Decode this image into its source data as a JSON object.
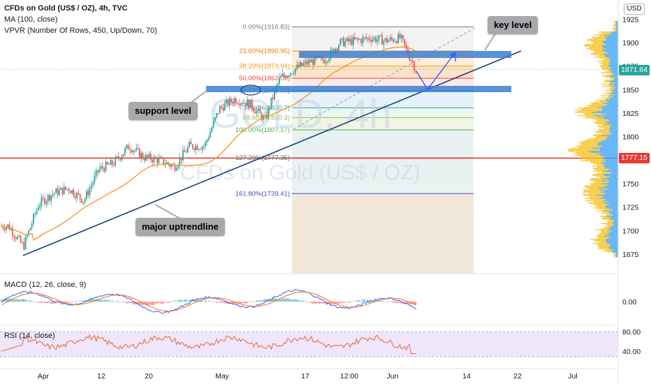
{
  "legend": {
    "title": "CFDs on Gold (US$ / OZ), 4h, TVC",
    "ma": "MA (100, close)",
    "vpvr": "VPVR (Number Of Rows, 450, Up/Down, 70)"
  },
  "currency": "USD",
  "watermark": {
    "symbol": "GOLD, 4h",
    "name": "CFDs on Gold (US$ / OZ)"
  },
  "annotations": {
    "key_level": "key level",
    "support_level": "support level",
    "major_uptrendline": "major uptrendline"
  },
  "price_tags": {
    "current": "1871.64",
    "red_line": "1777.15"
  },
  "macd_label": "MACD (12, 26, close, 9)",
  "rsi_label": "RSI (14, close)",
  "colors": {
    "up_candle": "#26a69a",
    "down_candle": "#ef5350",
    "ma_line": "#f7931a",
    "trendline": "#1a3f7a",
    "highlight_bar": "#3d7fd0",
    "red_level": "#e53935",
    "vp_up": "#f7c325",
    "vp_down": "#42a5f5",
    "macd_line": "#2962ff",
    "signal_line": "#ff6d00",
    "rsi_line": "#e8662b",
    "rsi_band": "#e9defa"
  },
  "chart_data": {
    "type": "candlestick",
    "title": "CFDs on Gold (US$ / OZ), 4h, TVC",
    "y_axis": {
      "ticks": [
        1675,
        1700,
        1725,
        1750,
        1775,
        1800,
        1825,
        1850,
        1875,
        1900,
        1925
      ],
      "range": [
        1662,
        1932
      ]
    },
    "x_axis": {
      "ticks": [
        "Apr",
        "12",
        "20",
        "May",
        "17",
        "12:00",
        "Jun",
        "14",
        "22",
        "Jul"
      ]
    },
    "current_price": 1871.64,
    "horizontal_levels": [
      1777.15
    ],
    "fibonacci": [
      {
        "label": "0.00%(1916.83)",
        "level": 0.0,
        "price": 1916.83
      },
      {
        "label": "23.60%(1890.95)",
        "level": 23.6,
        "price": 1890.95
      },
      {
        "label": "38.20%(1874.94)",
        "level": 38.2,
        "price": 1874.94
      },
      {
        "label": "50.00%(1862.00)",
        "level": 50.0,
        "price": 1862.0
      },
      {
        "label": "61.80%(1849.06)",
        "level": 61.8,
        "price": 1849.06
      },
      {
        "label": "78.60%(1830.7)",
        "level": 78.6,
        "price": 1830.7
      },
      {
        "label": "88.60%(1820.3)",
        "level": 88.6,
        "price": 1820.3
      },
      {
        "label": "100.00%(1807.17)",
        "level": 100.0,
        "price": 1807.17
      },
      {
        "label": "127.20%(1777.35)",
        "level": 127.2,
        "price": 1777.35
      },
      {
        "label": "161.80%(1739.41)",
        "level": 161.8,
        "price": 1739.41
      }
    ],
    "approx_close_path": [
      {
        "x": "Mar 30",
        "y": 1705
      },
      {
        "x": "Mar 31",
        "y": 1683
      },
      {
        "x": "Apr 02",
        "y": 1728
      },
      {
        "x": "Apr 06",
        "y": 1740
      },
      {
        "x": "Apr 09",
        "y": 1745
      },
      {
        "x": "Apr 12",
        "y": 1732
      },
      {
        "x": "Apr 15",
        "y": 1765
      },
      {
        "x": "Apr 19",
        "y": 1772
      },
      {
        "x": "Apr 21",
        "y": 1790
      },
      {
        "x": "Apr 23",
        "y": 1778
      },
      {
        "x": "Apr 27",
        "y": 1775
      },
      {
        "x": "Apr 29",
        "y": 1768
      },
      {
        "x": "May 03",
        "y": 1790
      },
      {
        "x": "May 05",
        "y": 1790
      },
      {
        "x": "May 07",
        "y": 1830
      },
      {
        "x": "May 10",
        "y": 1840
      },
      {
        "x": "May 12",
        "y": 1835
      },
      {
        "x": "May 13",
        "y": 1818
      },
      {
        "x": "May 17",
        "y": 1862
      },
      {
        "x": "May 19",
        "y": 1872
      },
      {
        "x": "May 21",
        "y": 1880
      },
      {
        "x": "May 24",
        "y": 1882
      },
      {
        "x": "May 26",
        "y": 1900
      },
      {
        "x": "May 28",
        "y": 1902
      },
      {
        "x": "May 31",
        "y": 1905
      },
      {
        "x": "Jun 01",
        "y": 1902
      },
      {
        "x": "Jun 02",
        "y": 1905
      },
      {
        "x": "Jun 04",
        "y": 1872
      }
    ],
    "macd": {
      "label": "MACD (12, 26, close, 9)",
      "ticks": [
        0.0
      ]
    },
    "rsi": {
      "label": "RSI (14, close)",
      "ticks": [
        80.0,
        40.0
      ]
    }
  }
}
